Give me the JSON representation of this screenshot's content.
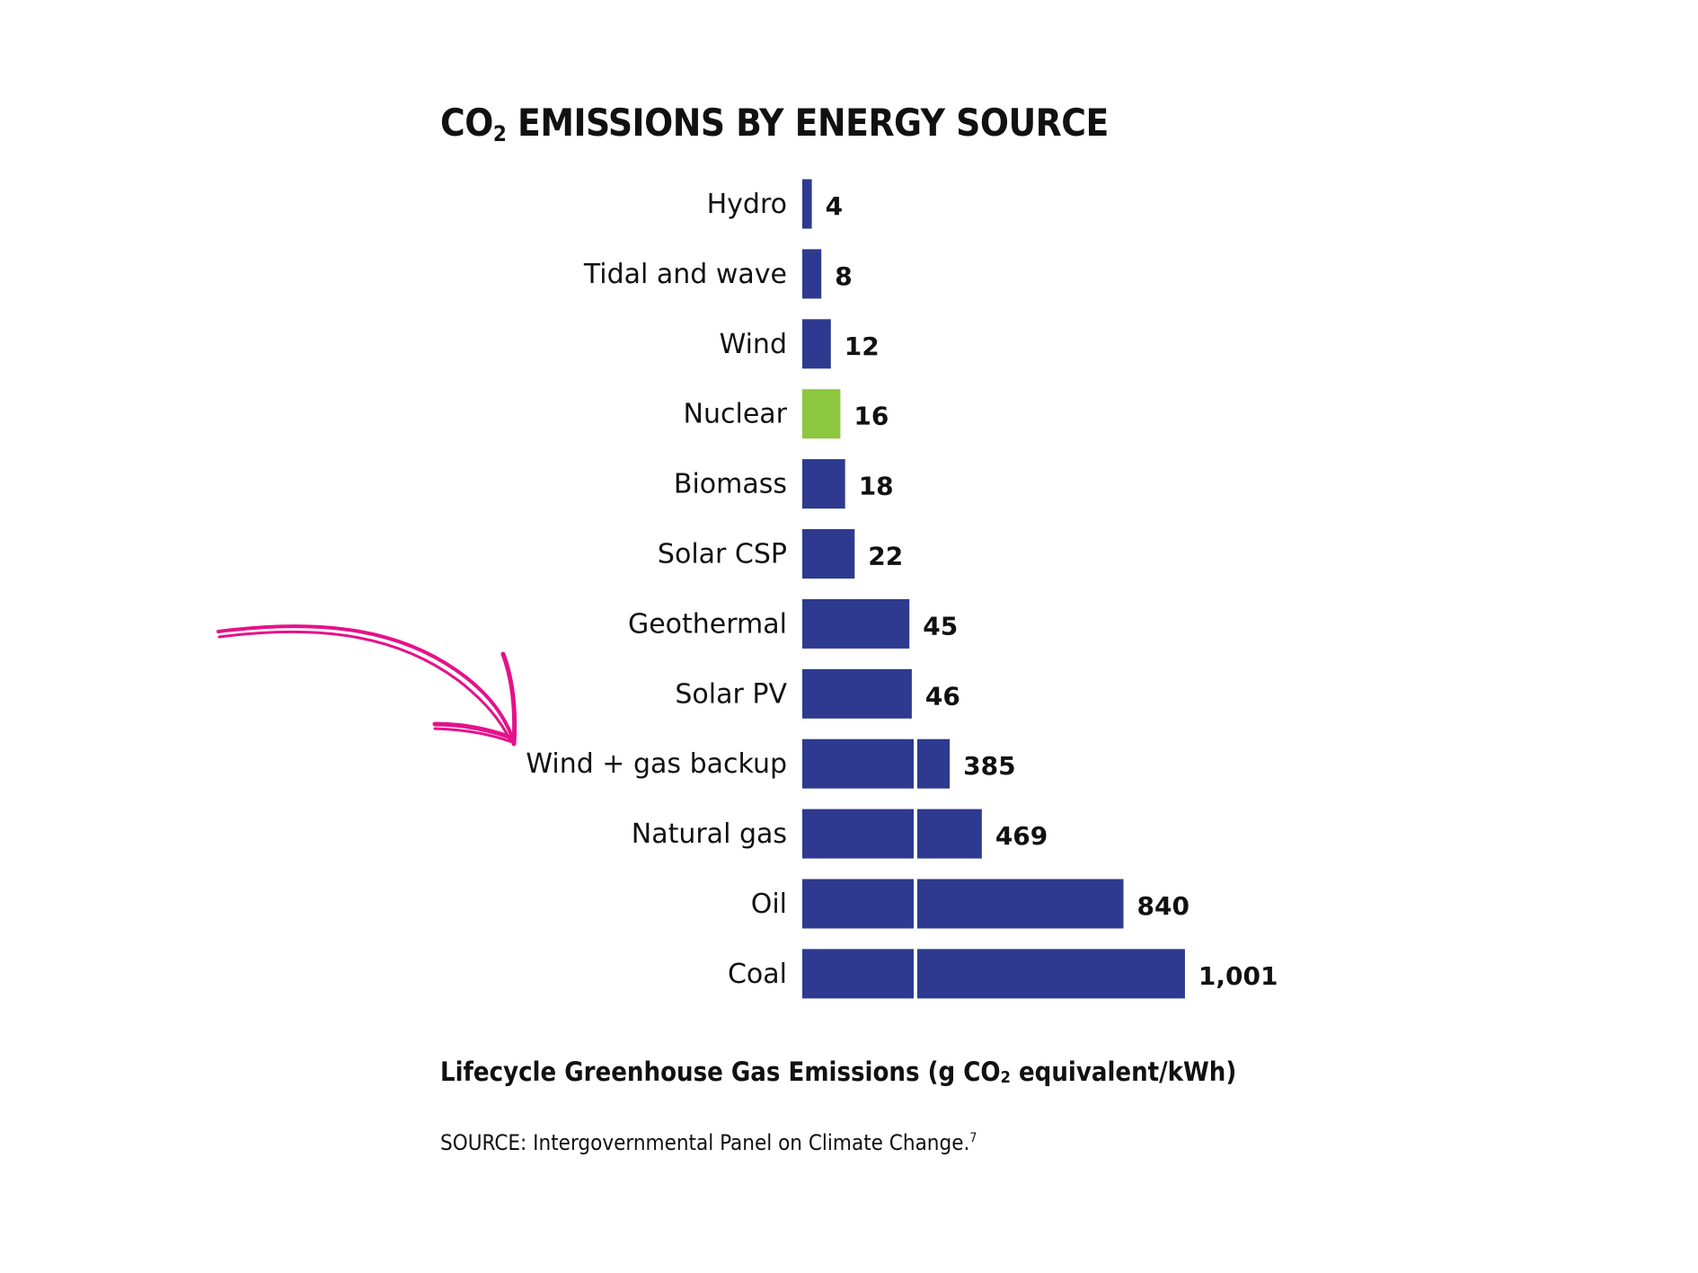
{
  "chart_data": {
    "type": "bar",
    "orientation": "horizontal",
    "title": {
      "prefix": "CO",
      "subscript": "2",
      "rest": " EMISSIONS BY ENERGY SOURCE"
    },
    "categories": [
      "Hydro",
      "Tidal and wave",
      "Wind",
      "Nuclear",
      "Biomass",
      "Solar CSP",
      "Geothermal",
      "Solar PV",
      "Wind + gas backup",
      "Natural gas",
      "Oil",
      "Coal"
    ],
    "values": [
      4,
      8,
      12,
      16,
      18,
      22,
      45,
      46,
      385,
      469,
      840,
      1001
    ],
    "value_labels": [
      "4",
      "8",
      "12",
      "16",
      "18",
      "22",
      "45",
      "46",
      "385",
      "469",
      "840",
      "1,001"
    ],
    "highlight_category": "Nuclear",
    "axis_break": true,
    "xlabel": {
      "prefix": "Lifecycle Greenhouse Gas Emissions (g CO",
      "subscript": "2",
      "rest": " equivalent/kWh)"
    },
    "ylabel": "",
    "grid": false,
    "legend": "none",
    "annotation": {
      "type": "hand-drawn-arrow",
      "points_to": "Wind + gas backup",
      "color": "#e5118a"
    },
    "colors": {
      "bar": "#2d3a8f",
      "highlight": "#8dc63f",
      "arrow": "#e5118a"
    }
  },
  "source": {
    "text": "SOURCE: Intergovernmental Panel on Climate Change.",
    "footnote": "7"
  }
}
